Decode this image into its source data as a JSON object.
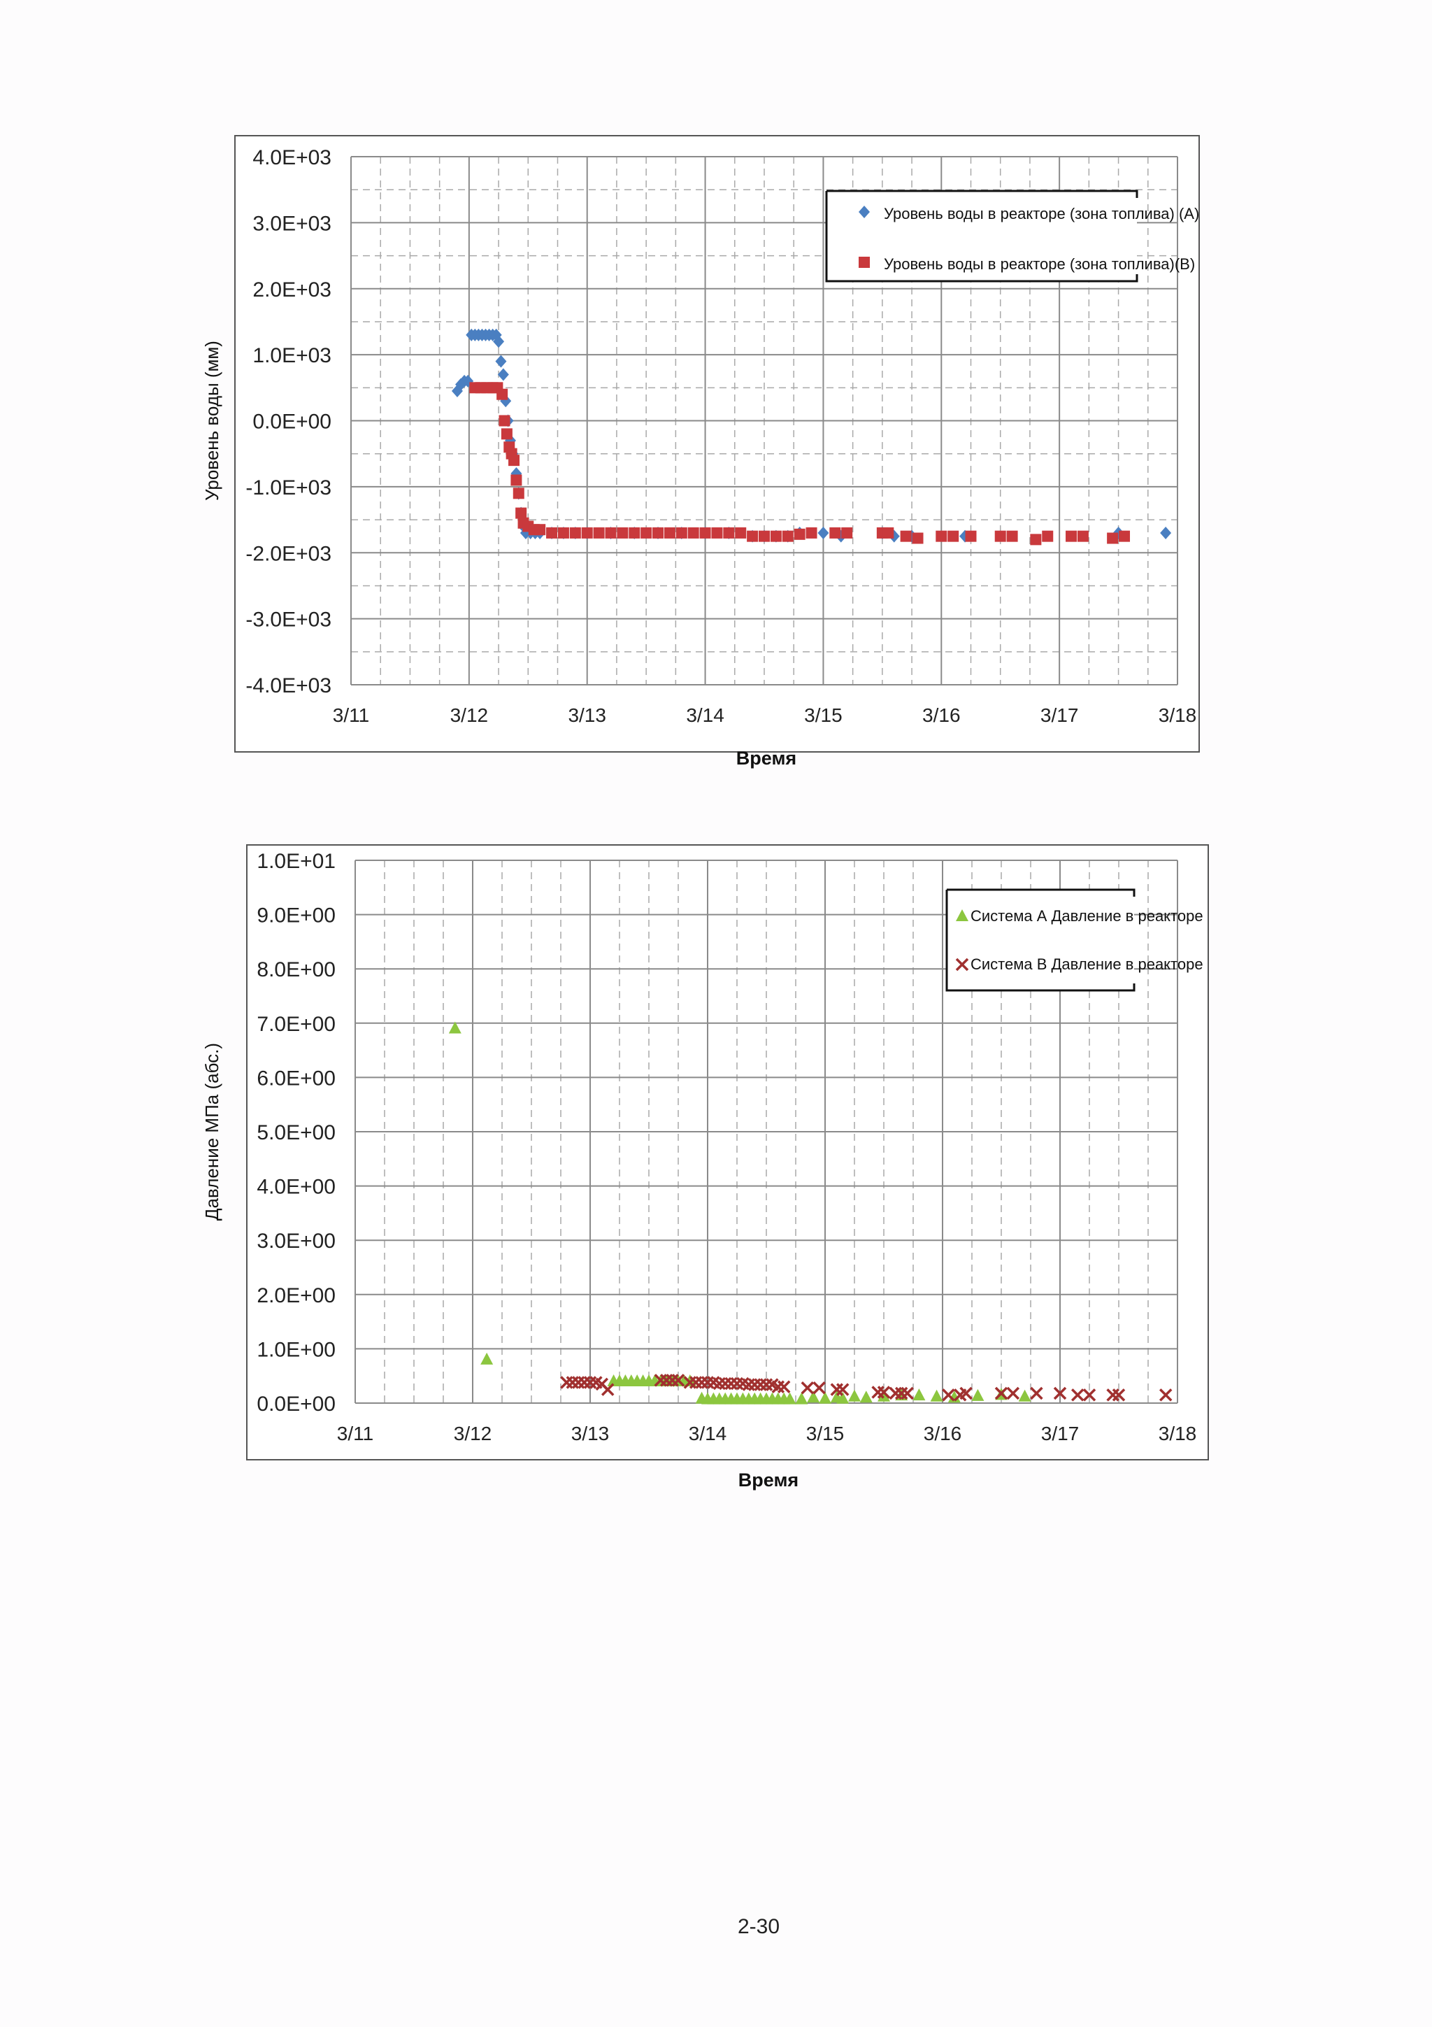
{
  "page_number": "2-30",
  "colors": {
    "series_a_level": "#4a7fc1",
    "series_b_level": "#c9393c",
    "series_a_pressure": "#8cc63f",
    "series_b_pressure": "#a0302f",
    "grid": "#a9a9a9",
    "frame": "#555555"
  },
  "chart_data": [
    {
      "type": "scatter",
      "ylabel": "Уровень воды (мм)",
      "xlabel": "Время",
      "x_tick_labels": [
        "3/11",
        "3/12",
        "3/13",
        "3/14",
        "3/15",
        "3/16",
        "3/17",
        "3/18"
      ],
      "y_tick_labels": [
        "4.0E+03",
        "3.0E+03",
        "2.0E+03",
        "1.0E+03",
        "0.0E+00",
        "-1.0E+03",
        "-2.0E+03",
        "-3.0E+03",
        "-4.0E+03"
      ],
      "xlim": [
        0,
        7
      ],
      "ylim": [
        -4000,
        4000
      ],
      "x_unit": "days since 3/11 00:00",
      "grid": true,
      "legend_position": "top-right",
      "series": [
        {
          "name": "Уровень воды в реакторе (зона топлива) (A)",
          "marker": "diamond",
          "color": "#4a7fc1",
          "points": [
            [
              0.9,
              450
            ],
            [
              0.93,
              550
            ],
            [
              0.96,
              600
            ],
            [
              0.99,
              600
            ],
            [
              1.02,
              1300
            ],
            [
              1.05,
              1300
            ],
            [
              1.08,
              1300
            ],
            [
              1.11,
              1300
            ],
            [
              1.14,
              1300
            ],
            [
              1.17,
              1300
            ],
            [
              1.2,
              1300
            ],
            [
              1.23,
              1300
            ],
            [
              1.25,
              1200
            ],
            [
              1.27,
              900
            ],
            [
              1.29,
              700
            ],
            [
              1.31,
              300
            ],
            [
              1.33,
              0
            ],
            [
              1.35,
              -300
            ],
            [
              1.37,
              -500
            ],
            [
              1.4,
              -800
            ],
            [
              1.42,
              -1100
            ],
            [
              1.44,
              -1400
            ],
            [
              1.46,
              -1600
            ],
            [
              1.48,
              -1700
            ],
            [
              1.52,
              -1700
            ],
            [
              1.56,
              -1700
            ],
            [
              1.6,
              -1700
            ],
            [
              1.7,
              -1700
            ],
            [
              1.8,
              -1700
            ],
            [
              1.9,
              -1700
            ],
            [
              2.0,
              -1700
            ],
            [
              2.2,
              -1700
            ],
            [
              2.4,
              -1700
            ],
            [
              2.6,
              -1700
            ],
            [
              2.8,
              -1700
            ],
            [
              3.0,
              -1700
            ],
            [
              3.2,
              -1700
            ],
            [
              3.4,
              -1750
            ],
            [
              3.5,
              -1750
            ],
            [
              3.6,
              -1750
            ],
            [
              3.7,
              -1750
            ],
            [
              3.8,
              -1700
            ],
            [
              4.0,
              -1700
            ],
            [
              4.15,
              -1750
            ],
            [
              4.5,
              -1700
            ],
            [
              4.6,
              -1750
            ],
            [
              4.75,
              -1750
            ],
            [
              5.2,
              -1750
            ],
            [
              6.5,
              -1700
            ],
            [
              6.9,
              -1700
            ]
          ]
        },
        {
          "name": "Уровень воды в реакторе (зона топлива)(B)",
          "marker": "square",
          "color": "#c9393c",
          "points": [
            [
              1.05,
              500
            ],
            [
              1.1,
              500
            ],
            [
              1.15,
              500
            ],
            [
              1.2,
              500
            ],
            [
              1.24,
              500
            ],
            [
              1.28,
              400
            ],
            [
              1.3,
              0
            ],
            [
              1.32,
              -200
            ],
            [
              1.34,
              -400
            ],
            [
              1.36,
              -500
            ],
            [
              1.38,
              -600
            ],
            [
              1.4,
              -900
            ],
            [
              1.42,
              -1100
            ],
            [
              1.44,
              -1400
            ],
            [
              1.46,
              -1550
            ],
            [
              1.5,
              -1600
            ],
            [
              1.55,
              -1650
            ],
            [
              1.6,
              -1650
            ],
            [
              1.7,
              -1700
            ],
            [
              1.8,
              -1700
            ],
            [
              1.9,
              -1700
            ],
            [
              2.0,
              -1700
            ],
            [
              2.1,
              -1700
            ],
            [
              2.2,
              -1700
            ],
            [
              2.3,
              -1700
            ],
            [
              2.4,
              -1700
            ],
            [
              2.5,
              -1700
            ],
            [
              2.6,
              -1700
            ],
            [
              2.7,
              -1700
            ],
            [
              2.8,
              -1700
            ],
            [
              2.9,
              -1700
            ],
            [
              3.0,
              -1700
            ],
            [
              3.1,
              -1700
            ],
            [
              3.2,
              -1700
            ],
            [
              3.3,
              -1700
            ],
            [
              3.4,
              -1750
            ],
            [
              3.5,
              -1750
            ],
            [
              3.6,
              -1750
            ],
            [
              3.7,
              -1750
            ],
            [
              3.8,
              -1720
            ],
            [
              3.9,
              -1700
            ],
            [
              4.1,
              -1700
            ],
            [
              4.2,
              -1700
            ],
            [
              4.5,
              -1700
            ],
            [
              4.55,
              -1700
            ],
            [
              4.7,
              -1750
            ],
            [
              4.8,
              -1780
            ],
            [
              5.0,
              -1750
            ],
            [
              5.1,
              -1750
            ],
            [
              5.25,
              -1750
            ],
            [
              5.5,
              -1750
            ],
            [
              5.6,
              -1750
            ],
            [
              5.8,
              -1800
            ],
            [
              5.9,
              -1750
            ],
            [
              6.1,
              -1750
            ],
            [
              6.2,
              -1750
            ],
            [
              6.45,
              -1780
            ],
            [
              6.55,
              -1750
            ]
          ]
        }
      ]
    },
    {
      "type": "scatter",
      "ylabel": "Давление МПа (абс.)",
      "xlabel": "Время",
      "x_tick_labels": [
        "3/11",
        "3/12",
        "3/13",
        "3/14",
        "3/15",
        "3/16",
        "3/17",
        "3/18"
      ],
      "y_tick_labels": [
        "1.0E+01",
        "9.0E+00",
        "8.0E+00",
        "7.0E+00",
        "6.0E+00",
        "5.0E+00",
        "4.0E+00",
        "3.0E+00",
        "2.0E+00",
        "1.0E+00",
        "0.0E+00"
      ],
      "xlim": [
        0,
        7
      ],
      "ylim": [
        0,
        10
      ],
      "x_unit": "days since 3/11 00:00",
      "grid": true,
      "legend_position": "top-right",
      "series": [
        {
          "name": "Система А Давление в реакторе",
          "marker": "triangle",
          "color": "#8cc63f",
          "points": [
            [
              0.85,
              6.9
            ],
            [
              1.12,
              0.8
            ],
            [
              2.2,
              0.4
            ],
            [
              2.25,
              0.4
            ],
            [
              2.3,
              0.4
            ],
            [
              2.35,
              0.4
            ],
            [
              2.4,
              0.4
            ],
            [
              2.45,
              0.4
            ],
            [
              2.5,
              0.4
            ],
            [
              2.55,
              0.4
            ],
            [
              2.6,
              0.4
            ],
            [
              2.65,
              0.4
            ],
            [
              2.7,
              0.4
            ],
            [
              2.75,
              0.4
            ],
            [
              2.8,
              0.4
            ],
            [
              2.85,
              0.4
            ],
            [
              2.95,
              0.08
            ],
            [
              3.0,
              0.07
            ],
            [
              3.05,
              0.07
            ],
            [
              3.1,
              0.07
            ],
            [
              3.15,
              0.07
            ],
            [
              3.2,
              0.07
            ],
            [
              3.25,
              0.07
            ],
            [
              3.3,
              0.07
            ],
            [
              3.35,
              0.07
            ],
            [
              3.4,
              0.07
            ],
            [
              3.45,
              0.07
            ],
            [
              3.5,
              0.07
            ],
            [
              3.55,
              0.07
            ],
            [
              3.6,
              0.07
            ],
            [
              3.65,
              0.07
            ],
            [
              3.7,
              0.07
            ],
            [
              3.8,
              0.07
            ],
            [
              3.9,
              0.1
            ],
            [
              4.0,
              0.08
            ],
            [
              4.1,
              0.1
            ],
            [
              4.15,
              0.08
            ],
            [
              4.25,
              0.12
            ],
            [
              4.35,
              0.1
            ],
            [
              4.5,
              0.12
            ],
            [
              4.65,
              0.14
            ],
            [
              4.8,
              0.14
            ],
            [
              4.95,
              0.12
            ],
            [
              5.1,
              0.1
            ],
            [
              5.3,
              0.13
            ],
            [
              5.5,
              0.15
            ],
            [
              5.7,
              0.12
            ]
          ]
        },
        {
          "name": "Система В Давление в реакторе",
          "marker": "cross",
          "color": "#a0302f",
          "points": [
            [
              1.8,
              0.38
            ],
            [
              1.85,
              0.38
            ],
            [
              1.9,
              0.38
            ],
            [
              1.95,
              0.38
            ],
            [
              2.0,
              0.38
            ],
            [
              2.05,
              0.38
            ],
            [
              2.1,
              0.35
            ],
            [
              2.15,
              0.25
            ],
            [
              2.6,
              0.42
            ],
            [
              2.65,
              0.42
            ],
            [
              2.7,
              0.42
            ],
            [
              2.75,
              0.42
            ],
            [
              2.85,
              0.38
            ],
            [
              2.9,
              0.38
            ],
            [
              2.95,
              0.38
            ],
            [
              3.0,
              0.38
            ],
            [
              3.05,
              0.38
            ],
            [
              3.1,
              0.36
            ],
            [
              3.15,
              0.36
            ],
            [
              3.2,
              0.36
            ],
            [
              3.25,
              0.36
            ],
            [
              3.3,
              0.36
            ],
            [
              3.35,
              0.34
            ],
            [
              3.4,
              0.34
            ],
            [
              3.45,
              0.34
            ],
            [
              3.5,
              0.34
            ],
            [
              3.55,
              0.34
            ],
            [
              3.6,
              0.3
            ],
            [
              3.65,
              0.3
            ],
            [
              3.85,
              0.28
            ],
            [
              3.95,
              0.28
            ],
            [
              4.1,
              0.25
            ],
            [
              4.15,
              0.25
            ],
            [
              4.45,
              0.2
            ],
            [
              4.5,
              0.2
            ],
            [
              4.6,
              0.18
            ],
            [
              4.65,
              0.18
            ],
            [
              4.7,
              0.18
            ],
            [
              5.05,
              0.15
            ],
            [
              5.15,
              0.15
            ],
            [
              5.2,
              0.18
            ],
            [
              5.5,
              0.18
            ],
            [
              5.6,
              0.18
            ],
            [
              5.8,
              0.18
            ],
            [
              6.0,
              0.18
            ],
            [
              6.15,
              0.15
            ],
            [
              6.25,
              0.15
            ],
            [
              6.45,
              0.15
            ],
            [
              6.5,
              0.15
            ],
            [
              6.9,
              0.15
            ]
          ]
        }
      ]
    }
  ]
}
